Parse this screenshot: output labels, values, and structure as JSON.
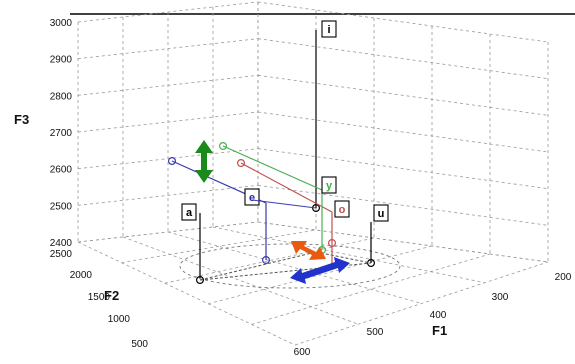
{
  "chart_data": {
    "type": "scatter3d",
    "axes": {
      "x": {
        "label": "F1",
        "ticks": [
          "600",
          "500",
          "400",
          "300",
          "200"
        ]
      },
      "y": {
        "label": "F2",
        "ticks": [
          "500",
          "1000",
          "1500",
          "2000",
          "2500"
        ]
      },
      "z": {
        "label": "F3",
        "ticks": [
          "2400",
          "2500",
          "2600",
          "2700",
          "2800",
          "2900",
          "3000"
        ]
      }
    },
    "labels": [
      {
        "text": "i",
        "color": "#000000"
      },
      {
        "text": "a",
        "color": "#000000"
      },
      {
        "text": "u",
        "color": "#000000"
      },
      {
        "text": "e",
        "color": "#2a2aa8"
      },
      {
        "text": "o",
        "color": "#c0504d"
      },
      {
        "text": "y",
        "color": "#3cb043"
      }
    ],
    "series_colors": {
      "black": "#000000",
      "blue": "#3a3ab0",
      "green": "#4caf50",
      "red": "#c05050"
    },
    "arrows": [
      {
        "color": "#1a8a1a",
        "direction": "vertical"
      },
      {
        "color": "#e85a10",
        "direction": "diagonal"
      },
      {
        "color": "#2233cc",
        "direction": "diagonal"
      }
    ]
  }
}
